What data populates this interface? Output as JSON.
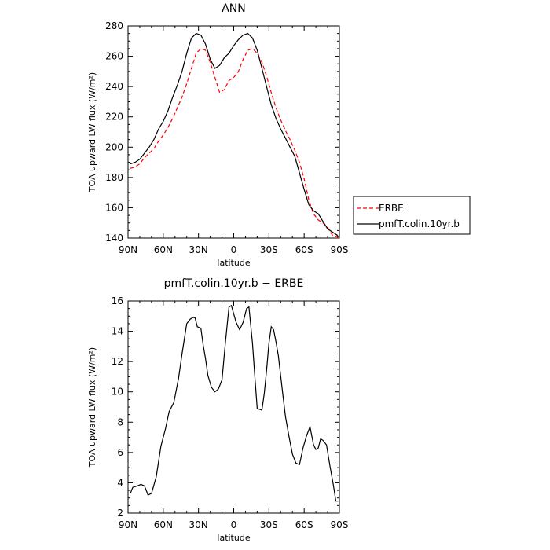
{
  "chart_data": [
    {
      "type": "line",
      "title": "ANN",
      "xlabel": "latitude",
      "ylabel": "TOA upward LW flux (W/m²)",
      "xlim": [
        90,
        -90
      ],
      "ylim": [
        140,
        280
      ],
      "yticks": [
        140,
        160,
        180,
        200,
        220,
        240,
        260,
        280
      ],
      "xticks": [
        {
          "value": 90,
          "label": "90N"
        },
        {
          "value": 60,
          "label": "60N"
        },
        {
          "value": 30,
          "label": "30N"
        },
        {
          "value": 0,
          "label": "0"
        },
        {
          "value": -30,
          "label": "30S"
        },
        {
          "value": -60,
          "label": "60S"
        },
        {
          "value": -90,
          "label": "90S"
        }
      ],
      "legend": "right",
      "grid": false,
      "series": [
        {
          "name": "ERBE",
          "color": "#ff0000",
          "dash": "dashed",
          "x": [
            88,
            84,
            80,
            76,
            72,
            68,
            64,
            60,
            56,
            52,
            48,
            44,
            40,
            36,
            32,
            28,
            24,
            20,
            16,
            12,
            8,
            4,
            0,
            -4,
            -8,
            -12,
            -16,
            -20,
            -24,
            -28,
            -32,
            -36,
            -40,
            -44,
            -48,
            -52,
            -56,
            -60,
            -64,
            -68,
            -72,
            -76,
            -80,
            -84,
            -88,
            -89
          ],
          "y": [
            186,
            187,
            189,
            193,
            196,
            199,
            204,
            208,
            213,
            219,
            226,
            233,
            242,
            252,
            262,
            265,
            264,
            256,
            246,
            236,
            238,
            244,
            246,
            250,
            258,
            264,
            265,
            262,
            256,
            247,
            236,
            226,
            218,
            211,
            205,
            198,
            190,
            179,
            165,
            156,
            152,
            150,
            147,
            142,
            141,
            140
          ]
        },
        {
          "name": "pmfT.colin.10yr.b",
          "color": "#000000",
          "dash": "solid",
          "x": [
            88,
            84,
            80,
            76,
            72,
            68,
            64,
            60,
            56,
            52,
            48,
            44,
            40,
            36,
            32,
            28,
            24,
            20,
            16,
            12,
            8,
            4,
            0,
            -4,
            -8,
            -12,
            -16,
            -20,
            -24,
            -28,
            -32,
            -36,
            -40,
            -44,
            -48,
            -52,
            -56,
            -60,
            -64,
            -68,
            -72,
            -76,
            -80,
            -84,
            -88,
            -89
          ],
          "y": [
            189,
            190,
            192,
            196,
            200,
            205,
            212,
            217,
            224,
            233,
            241,
            250,
            262,
            272,
            275,
            274,
            268,
            258,
            252,
            254,
            259,
            262,
            267,
            271,
            274,
            275,
            272,
            264,
            252,
            240,
            228,
            219,
            212,
            206,
            200,
            194,
            183,
            172,
            162,
            158,
            156,
            151,
            146,
            144,
            142,
            141
          ]
        }
      ]
    },
    {
      "type": "line",
      "title": "pmfT.colin.10yr.b − ERBE",
      "xlabel": "latitude",
      "ylabel": "TOA upward LW flux (W/m²)",
      "xlim": [
        90,
        -90
      ],
      "ylim": [
        2,
        16
      ],
      "yticks": [
        2,
        4,
        6,
        8,
        10,
        12,
        14,
        16
      ],
      "xticks": [
        {
          "value": 90,
          "label": "90N"
        },
        {
          "value": 60,
          "label": "60N"
        },
        {
          "value": 30,
          "label": "30N"
        },
        {
          "value": 0,
          "label": "0"
        },
        {
          "value": -30,
          "label": "30S"
        },
        {
          "value": -60,
          "label": "60S"
        },
        {
          "value": -90,
          "label": "90S"
        }
      ],
      "grid": false,
      "series": [
        {
          "color": "#000000",
          "dash": "solid",
          "x": [
            88,
            86,
            82,
            79,
            76,
            73,
            70,
            66,
            62,
            58,
            55,
            51,
            47,
            44,
            40,
            37,
            35,
            33,
            31,
            28,
            26,
            24,
            22,
            19,
            16,
            13,
            10,
            7,
            4,
            2,
            -2,
            -5,
            -8,
            -11,
            -13,
            -16,
            -18,
            -20,
            -24,
            -26,
            -28,
            -30,
            -32,
            -34,
            -36,
            -38,
            -42,
            -44,
            -47,
            -50,
            -53,
            -56,
            -59,
            -62,
            -65,
            -68,
            -70,
            -72,
            -74,
            -76,
            -79,
            -82,
            -85,
            -87,
            -89
          ],
          "y": [
            3.3,
            3.7,
            3.8,
            3.9,
            3.8,
            3.2,
            3.3,
            4.4,
            6.4,
            7.6,
            8.7,
            9.3,
            10.9,
            12.5,
            14.5,
            14.8,
            14.9,
            14.9,
            14.3,
            14.2,
            13.1,
            12.2,
            11.1,
            10.3,
            10.0,
            10.2,
            10.8,
            13.3,
            15.6,
            15.7,
            14.6,
            14.1,
            14.6,
            15.5,
            15.6,
            13.2,
            11.0,
            8.9,
            8.8,
            9.9,
            11.4,
            13.2,
            14.3,
            14.1,
            13.3,
            12.4,
            9.7,
            8.4,
            7.1,
            5.9,
            5.3,
            5.2,
            6.3,
            7.1,
            7.7,
            6.5,
            6.2,
            6.3,
            6.9,
            6.8,
            6.5,
            5.1,
            3.8,
            2.8,
            2.8
          ]
        }
      ]
    }
  ]
}
